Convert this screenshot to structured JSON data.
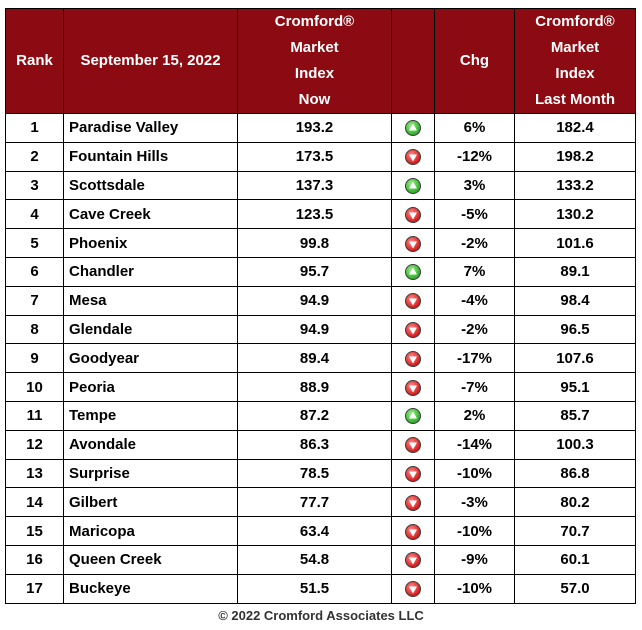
{
  "chart_data": {
    "type": "table",
    "columns": [
      "Rank",
      "September 15, 2022",
      "Cromford® Market Index Now",
      "",
      "Chg",
      "Cromford® Market Index Last Month"
    ],
    "header": {
      "rank": "Rank",
      "date": "September 15, 2022",
      "now": [
        "Cromford®",
        "Market",
        "Index",
        "Now"
      ],
      "icon": "",
      "chg": "Chg",
      "last": [
        "Cromford®",
        "Market",
        "Index",
        "Last Month"
      ]
    },
    "rows": [
      {
        "rank": "1",
        "name": "Paradise Valley",
        "now": "193.2",
        "trend": "up",
        "chg": "6%",
        "last": "182.4"
      },
      {
        "rank": "2",
        "name": "Fountain Hills",
        "now": "173.5",
        "trend": "down",
        "chg": "-12%",
        "last": "198.2"
      },
      {
        "rank": "3",
        "name": "Scottsdale",
        "now": "137.3",
        "trend": "up",
        "chg": "3%",
        "last": "133.2"
      },
      {
        "rank": "4",
        "name": "Cave Creek",
        "now": "123.5",
        "trend": "down",
        "chg": "-5%",
        "last": "130.2"
      },
      {
        "rank": "5",
        "name": "Phoenix",
        "now": "99.8",
        "trend": "down",
        "chg": "-2%",
        "last": "101.6"
      },
      {
        "rank": "6",
        "name": "Chandler",
        "now": "95.7",
        "trend": "up",
        "chg": "7%",
        "last": "89.1"
      },
      {
        "rank": "7",
        "name": "Mesa",
        "now": "94.9",
        "trend": "down",
        "chg": "-4%",
        "last": "98.4"
      },
      {
        "rank": "8",
        "name": "Glendale",
        "now": "94.9",
        "trend": "down",
        "chg": "-2%",
        "last": "96.5"
      },
      {
        "rank": "9",
        "name": "Goodyear",
        "now": "89.4",
        "trend": "down",
        "chg": "-17%",
        "last": "107.6"
      },
      {
        "rank": "10",
        "name": "Peoria",
        "now": "88.9",
        "trend": "down",
        "chg": "-7%",
        "last": "95.1"
      },
      {
        "rank": "11",
        "name": "Tempe",
        "now": "87.2",
        "trend": "up",
        "chg": "2%",
        "last": "85.7"
      },
      {
        "rank": "12",
        "name": "Avondale",
        "now": "86.3",
        "trend": "down",
        "chg": "-14%",
        "last": "100.3"
      },
      {
        "rank": "13",
        "name": "Surprise",
        "now": "78.5",
        "trend": "down",
        "chg": "-10%",
        "last": "86.8"
      },
      {
        "rank": "14",
        "name": "Gilbert",
        "now": "77.7",
        "trend": "down",
        "chg": "-3%",
        "last": "80.2"
      },
      {
        "rank": "15",
        "name": "Maricopa",
        "now": "63.4",
        "trend": "down",
        "chg": "-10%",
        "last": "70.7"
      },
      {
        "rank": "16",
        "name": "Queen Creek",
        "now": "54.8",
        "trend": "down",
        "chg": "-9%",
        "last": "60.1"
      },
      {
        "rank": "17",
        "name": "Buckeye",
        "now": "51.5",
        "trend": "down",
        "chg": "-10%",
        "last": "57.0"
      }
    ]
  },
  "icons": {
    "up": "green-up-arrow-icon",
    "down": "red-down-arrow-icon"
  },
  "colors": {
    "header_bg": "#8c0b12",
    "header_text": "#ffffff",
    "up": "#2fae2a",
    "down": "#d41d1d"
  },
  "footer": "© 2022 Cromford Associates LLC"
}
